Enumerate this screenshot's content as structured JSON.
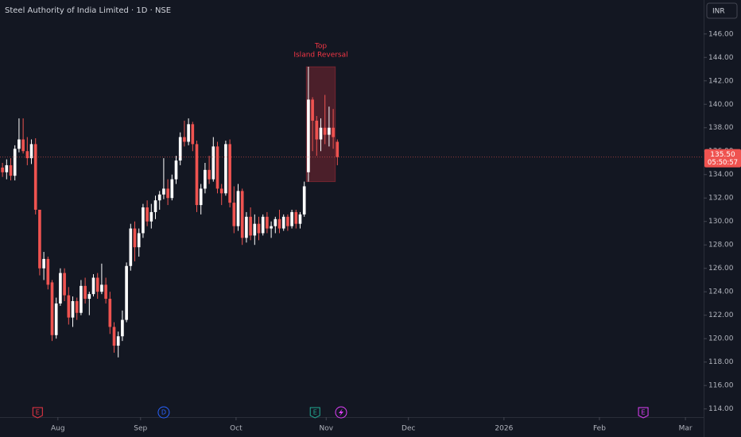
{
  "chart_data": {
    "type": "candlestick",
    "title": "Steel Authority of India Limited · 1D · NSE",
    "currency": "INR",
    "up_color": "#ffffff",
    "down_color": "#ef5350",
    "open": [
      134.6,
      134.2,
      134.8,
      133.9,
      136.2,
      137.0,
      136.0,
      135.4,
      136.6,
      131.0,
      126.0,
      126.8,
      124.8,
      120.3,
      123.0,
      125.6,
      123.7,
      121.8,
      123.2,
      122.2,
      124.5,
      123.4,
      123.8,
      125.2,
      124.0,
      124.6,
      123.4,
      121.0,
      119.4,
      120.2,
      121.6,
      126.2,
      129.4,
      127.8,
      129.0,
      131.2,
      130.0,
      130.8,
      131.8,
      132.3,
      132.8,
      132.0,
      133.6,
      135.2,
      137.2,
      136.8,
      138.3,
      136.6,
      131.4,
      132.8,
      134.4,
      133.6,
      136.4,
      132.8,
      132.4,
      136.6,
      131.6,
      129.6,
      132.6,
      128.6,
      130.4,
      128.8,
      129.8,
      129.0,
      130.4,
      129.4,
      129.6,
      130.2,
      129.4,
      130.4,
      129.6,
      130.8,
      129.8,
      130.6,
      134.2,
      140.4,
      138.6,
      137.0,
      138.0,
      137.4,
      138.0,
      136.8
    ],
    "high": [
      135.0,
      135.3,
      135.4,
      136.5,
      138.8,
      138.8,
      137.2,
      137.0,
      137.1,
      131.0,
      127.4,
      127.0,
      125.0,
      123.5,
      126.0,
      126.0,
      124.4,
      123.6,
      123.5,
      125.0,
      125.2,
      124.0,
      125.5,
      125.6,
      126.4,
      125.2,
      124.0,
      121.4,
      120.6,
      122.4,
      126.5,
      129.8,
      130.0,
      129.4,
      131.5,
      131.8,
      131.5,
      132.2,
      132.6,
      135.4,
      133.6,
      134.0,
      135.6,
      137.6,
      138.6,
      138.8,
      138.5,
      136.9,
      133.2,
      135.0,
      135.6,
      137.2,
      136.8,
      133.2,
      136.9,
      137.0,
      133.0,
      133.2,
      132.8,
      130.8,
      131.2,
      130.6,
      130.4,
      130.6,
      130.8,
      130.0,
      130.4,
      131.0,
      130.6,
      130.6,
      131.0,
      131.0,
      130.8,
      133.4,
      143.2,
      140.6,
      139.0,
      138.8,
      140.8,
      139.8,
      139.6,
      137.0
    ],
    "low": [
      133.8,
      133.6,
      133.5,
      133.5,
      135.9,
      135.8,
      134.8,
      134.9,
      130.6,
      125.4,
      125.0,
      124.2,
      119.8,
      120.0,
      122.8,
      123.2,
      121.2,
      121.0,
      121.6,
      122.0,
      123.0,
      122.0,
      123.6,
      123.4,
      123.8,
      123.0,
      120.4,
      118.8,
      118.4,
      119.8,
      121.4,
      125.8,
      126.6,
      127.0,
      128.6,
      129.6,
      129.4,
      130.2,
      131.0,
      131.9,
      131.4,
      131.8,
      133.2,
      134.8,
      136.4,
      136.5,
      136.0,
      130.8,
      130.6,
      132.4,
      133.2,
      133.4,
      132.4,
      131.4,
      132.2,
      131.2,
      129.0,
      129.2,
      128.0,
      128.2,
      128.4,
      128.0,
      128.4,
      128.8,
      129.0,
      128.6,
      129.0,
      129.0,
      129.2,
      129.2,
      129.4,
      129.4,
      129.4,
      130.4,
      133.4,
      136.0,
      135.6,
      136.0,
      136.6,
      136.4,
      136.2,
      134.8
    ],
    "close": [
      134.2,
      134.8,
      133.9,
      136.2,
      137.0,
      136.0,
      135.4,
      136.6,
      131.0,
      126.0,
      126.8,
      124.6,
      120.3,
      123.0,
      125.6,
      123.7,
      121.8,
      123.2,
      122.2,
      124.5,
      123.4,
      123.8,
      125.2,
      124.0,
      124.6,
      123.4,
      121.0,
      119.4,
      120.2,
      121.6,
      126.2,
      129.4,
      127.8,
      129.0,
      131.2,
      130.0,
      130.8,
      131.8,
      132.3,
      132.8,
      132.0,
      133.6,
      135.2,
      137.2,
      136.8,
      138.3,
      136.6,
      131.4,
      132.8,
      134.4,
      133.6,
      136.4,
      132.8,
      132.4,
      136.6,
      131.6,
      129.6,
      132.6,
      128.6,
      130.4,
      128.8,
      129.8,
      129.0,
      130.4,
      129.4,
      129.6,
      130.2,
      129.4,
      130.4,
      129.6,
      130.8,
      129.8,
      130.6,
      133.0,
      140.4,
      138.6,
      137.0,
      138.0,
      137.4,
      138.0,
      137.2,
      135.5
    ],
    "price_label": "135.50",
    "countdown": "05:50:57",
    "annotation": [
      "Top",
      "Island Reversal"
    ],
    "events": [
      {
        "label": "E",
        "x": 8.5
      },
      {
        "label": "D",
        "x": 39
      },
      {
        "label": "E",
        "x": 75.6
      },
      {
        "label": "E",
        "x": 155
      }
    ],
    "xlim": [
      -0.6,
      169.6
    ],
    "xticks": [
      {
        "value": 13.4,
        "label": "Aug"
      },
      {
        "value": 33.4,
        "label": "Sep"
      },
      {
        "value": 56.5,
        "label": "Oct"
      },
      {
        "value": 78.3,
        "label": "Nov"
      },
      {
        "value": 98.2,
        "label": "Dec"
      },
      {
        "value": 121.3,
        "label": "2026"
      },
      {
        "value": 144.4,
        "label": "Feb"
      },
      {
        "value": 165.2,
        "label": "Mar"
      }
    ],
    "ylim": [
      113.3,
      148.9
    ],
    "yticks": [
      {
        "value": 114,
        "label": "114.00"
      },
      {
        "value": 116,
        "label": "116.00"
      },
      {
        "value": 118,
        "label": "118.00"
      },
      {
        "value": 120,
        "label": "120.00"
      },
      {
        "value": 122,
        "label": "122.00"
      },
      {
        "value": 124,
        "label": "124.00"
      },
      {
        "value": 126,
        "label": "126.00"
      },
      {
        "value": 128,
        "label": "128.00"
      },
      {
        "value": 130,
        "label": "130.00"
      },
      {
        "value": 132,
        "label": "132.00"
      },
      {
        "value": 134,
        "label": "134.00"
      },
      {
        "value": 136,
        "label": "136.00"
      },
      {
        "value": 138,
        "label": "138.00"
      },
      {
        "value": 140,
        "label": "140.00"
      },
      {
        "value": 142,
        "label": "142.00"
      },
      {
        "value": 144,
        "label": "144.00"
      },
      {
        "value": 146,
        "label": "146.00"
      }
    ]
  }
}
